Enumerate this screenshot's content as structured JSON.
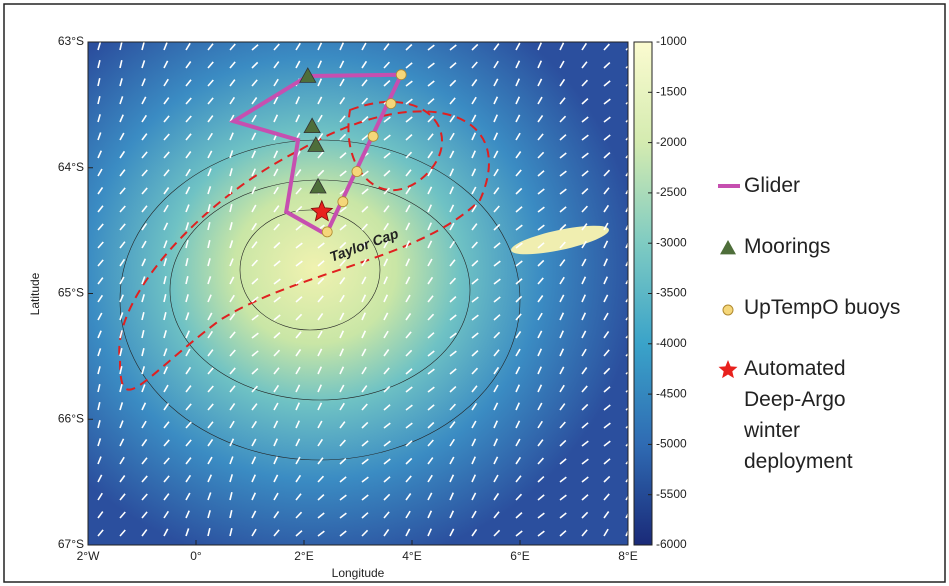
{
  "chart_data": {
    "type": "map",
    "x_label": "Longitude",
    "y_label": "Latitude",
    "annotation": "Taylor Cap",
    "xlim": [
      -2,
      8
    ],
    "ylim": [
      -67,
      -63
    ],
    "xticks": [
      {
        "value": -2,
        "label": "2°W"
      },
      {
        "value": 0,
        "label": "0°"
      },
      {
        "value": 2,
        "label": "2°E"
      },
      {
        "value": 4,
        "label": "4°E"
      },
      {
        "value": 6,
        "label": "6°E"
      },
      {
        "value": 8,
        "label": "8°E"
      }
    ],
    "yticks": [
      {
        "value": -63,
        "label": "63°S"
      },
      {
        "value": -64,
        "label": "64°S"
      },
      {
        "value": -65,
        "label": "65°S"
      },
      {
        "value": -66,
        "label": "66°S"
      },
      {
        "value": -67,
        "label": "67°S"
      }
    ],
    "clim": [
      -6000,
      -1000
    ],
    "cticks": [
      -1000,
      -1500,
      -2000,
      -2500,
      -3000,
      -3500,
      -4000,
      -4500,
      -5000,
      -5500,
      -6000
    ],
    "series": [
      {
        "name": "Glider",
        "kind": "path",
        "color": "#c64fb0",
        "x": [
          2.07,
          3.8,
          2.41,
          1.67,
          1.89,
          0.7,
          2.07
        ],
        "y": [
          -63.27,
          -63.26,
          -64.53,
          -64.35,
          -63.78,
          -63.63,
          -63.27
        ]
      },
      {
        "name": "Moorings",
        "kind": "triangle",
        "color": "#4e6e3a",
        "x": [
          2.07,
          2.15,
          2.22,
          2.26
        ],
        "y": [
          -63.27,
          -63.67,
          -63.82,
          -64.15
        ]
      },
      {
        "name": "UpTempO buoys",
        "kind": "circle",
        "color": "#f5d77a",
        "x": [
          3.8,
          3.61,
          3.28,
          2.98,
          2.72,
          2.43
        ],
        "y": [
          -63.26,
          -63.49,
          -63.75,
          -64.03,
          -64.27,
          -64.51
        ]
      },
      {
        "name": "Automated Deep-Argo winter deployment",
        "kind": "star",
        "color": "#e8211d",
        "x": [
          2.33
        ],
        "y": [
          -64.35
        ]
      }
    ]
  }
}
